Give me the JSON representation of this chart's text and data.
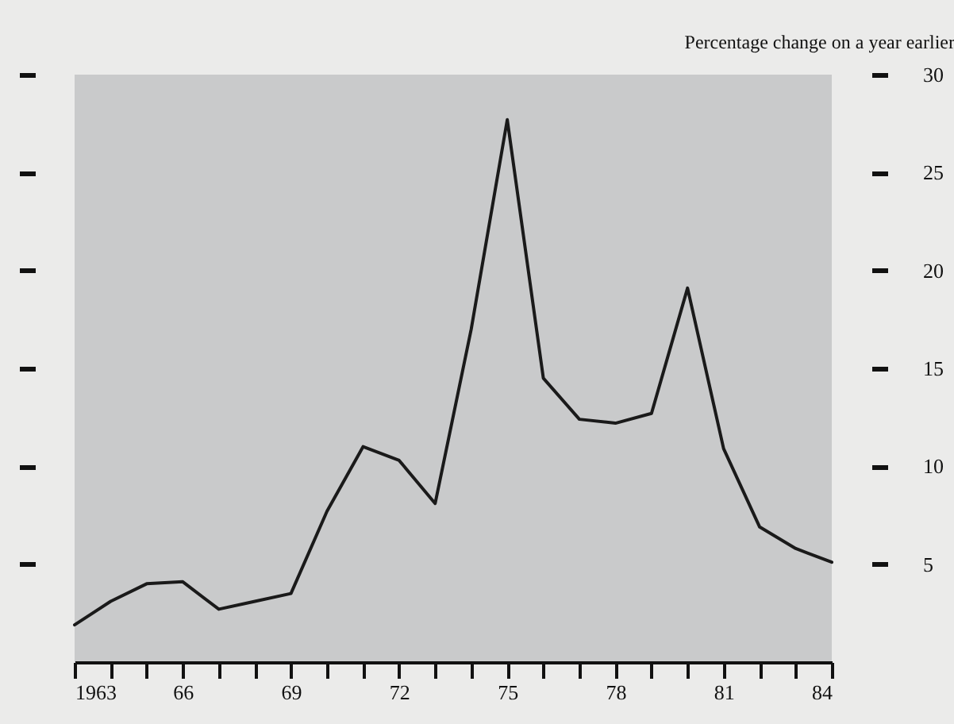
{
  "chart_data": {
    "type": "line",
    "ylabel": "Percentage change on a year earlier",
    "x": [
      1963,
      1964,
      1965,
      1966,
      1967,
      1968,
      1969,
      1970,
      1971,
      1972,
      1973,
      1974,
      1975,
      1976,
      1977,
      1978,
      1979,
      1980,
      1981,
      1982,
      1983,
      1984
    ],
    "series": [
      {
        "color": "#1a1a1a",
        "values": [
          1.9,
          3.1,
          4.0,
          4.1,
          2.7,
          3.1,
          3.5,
          7.7,
          11.0,
          10.3,
          8.1,
          17,
          27.7,
          14.5,
          12.4,
          12.2,
          12.7,
          19.1,
          10.9,
          6.9,
          5.8,
          5.1
        ]
      }
    ],
    "xlim": [
      1963,
      1984
    ],
    "xticks": [
      1963,
      {
        "value": 1964,
        "label": null
      },
      {
        "value": 1965,
        "label": null
      },
      {
        "value": 1966,
        "label": "66"
      },
      {
        "value": 1967,
        "label": null
      },
      {
        "value": 1968,
        "label": null
      },
      {
        "value": 1969,
        "label": "69"
      },
      {
        "value": 1970,
        "label": null
      },
      {
        "value": 1971,
        "label": null
      },
      {
        "value": 1972,
        "label": "72"
      },
      {
        "value": 1973,
        "label": null
      },
      {
        "value": 1974,
        "label": null
      },
      {
        "value": 1975,
        "label": "75"
      },
      {
        "value": 1976,
        "label": null
      },
      {
        "value": 1977,
        "label": null
      },
      {
        "value": 1978,
        "label": "78"
      },
      {
        "value": 1979,
        "label": null
      },
      {
        "value": 1980,
        "label": null
      },
      {
        "value": 1981,
        "label": "81"
      },
      {
        "value": 1982,
        "label": null
      },
      {
        "value": 1983,
        "label": null
      },
      {
        "value": 1984,
        "label": "84"
      }
    ],
    "ylim": [
      0,
      30
    ],
    "yticks": [
      5,
      10,
      15,
      20,
      25,
      30
    ]
  }
}
